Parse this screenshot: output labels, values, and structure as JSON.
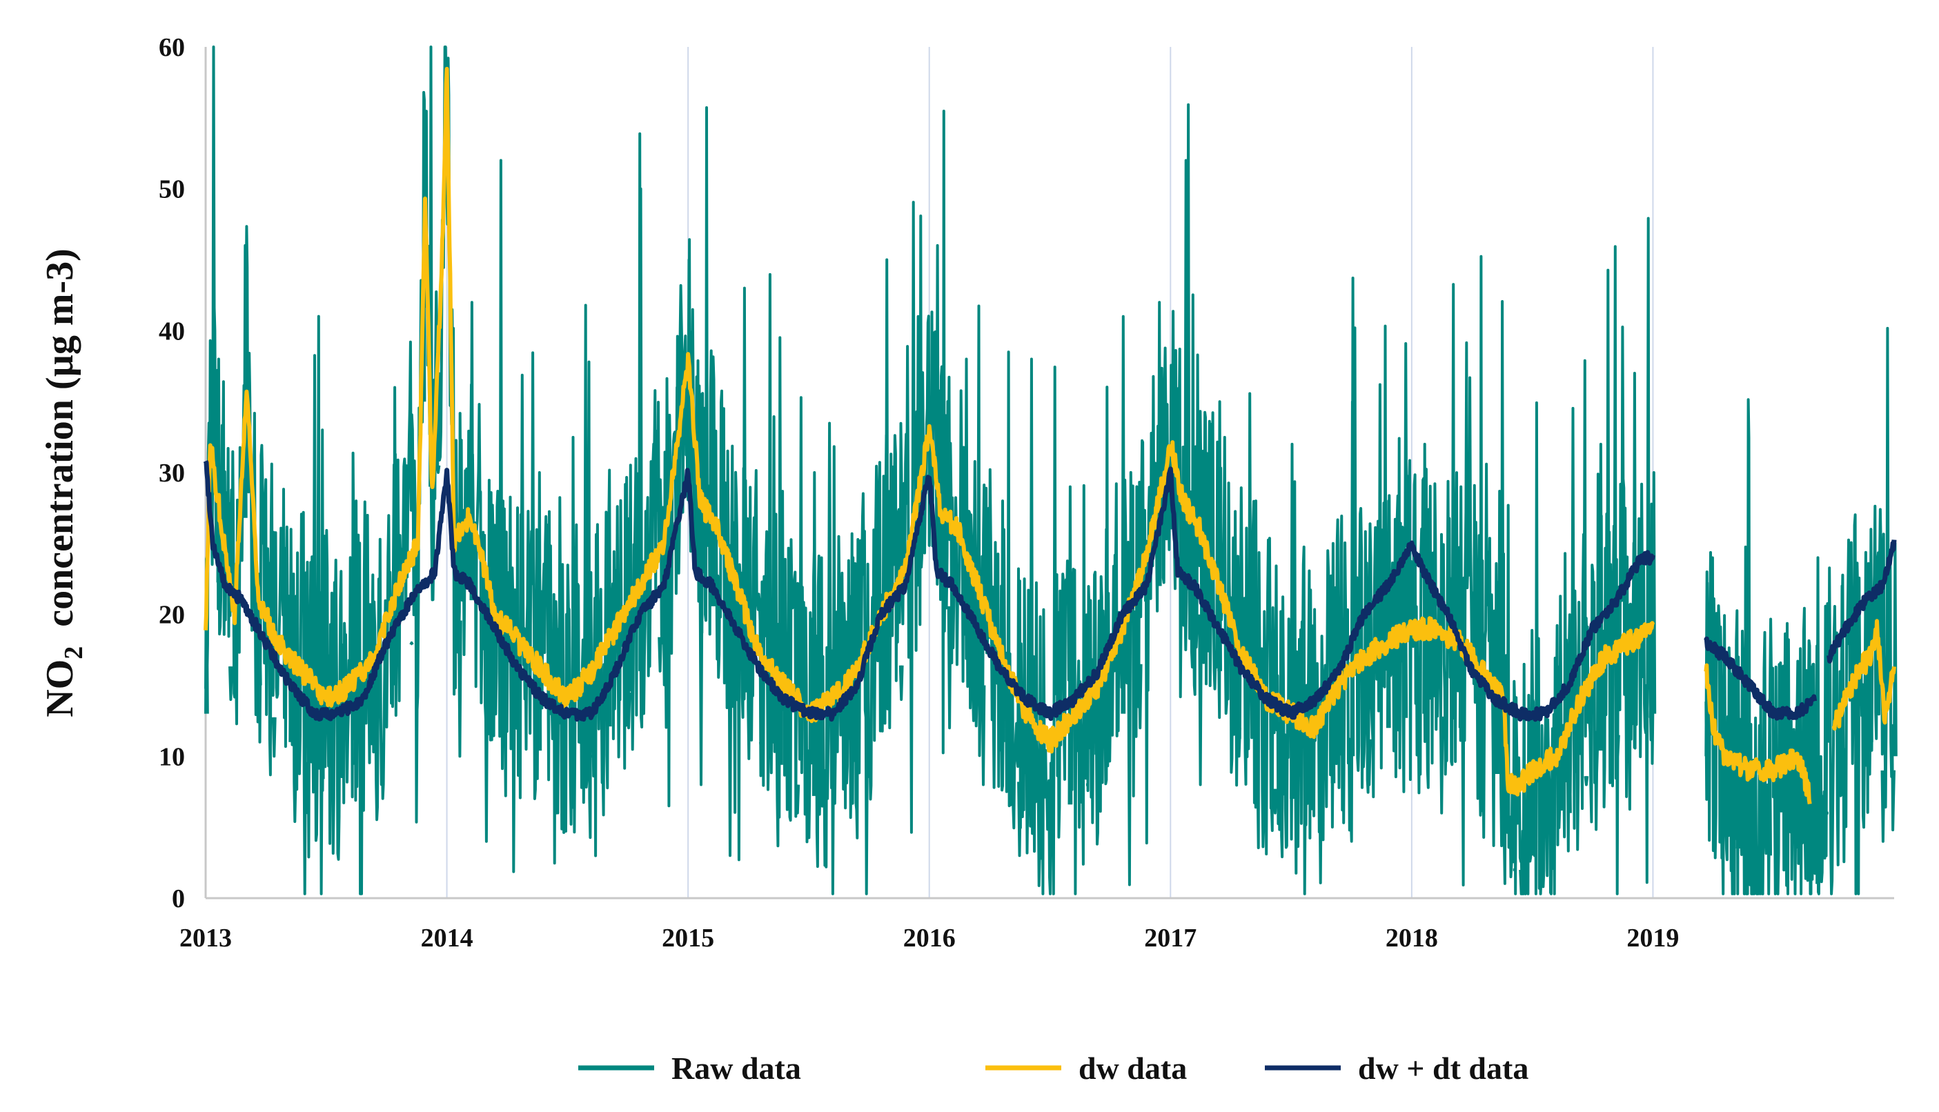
{
  "chart_data": {
    "type": "line",
    "title": "",
    "xlabel": "",
    "ylabel": {
      "prefix": "NO",
      "subscript": "2",
      "suffix": "  concentration (µg m-3)"
    },
    "ylim": [
      0,
      60
    ],
    "yticks": [
      "0",
      "10",
      "20",
      "30",
      "40",
      "50",
      "60"
    ],
    "xlim": [
      2013,
      2020
    ],
    "xticks": [
      "2013",
      "2014",
      "2015",
      "2016",
      "2017",
      "2018",
      "2019"
    ],
    "grid": "vertical year lines",
    "legend_position": "bottom-center",
    "data_gap": [
      2019.0,
      2019.22
    ],
    "series": [
      {
        "name": "Raw data",
        "color": "#00877f",
        "style": "noisy daily values",
        "min_value": 0.3,
        "max_value": 60,
        "points": [
          [
            2013.0,
            24
          ],
          [
            2013.05,
            38
          ],
          [
            2013.1,
            14
          ],
          [
            2013.16,
            46
          ],
          [
            2013.22,
            20
          ],
          [
            2013.28,
            10
          ],
          [
            2013.35,
            26
          ],
          [
            2013.42,
            6
          ],
          [
            2013.48,
            33
          ],
          [
            2013.55,
            9
          ],
          [
            2013.62,
            28
          ],
          [
            2013.7,
            12
          ],
          [
            2013.78,
            36
          ],
          [
            2013.85,
            18
          ],
          [
            2013.9,
            51
          ],
          [
            2013.93,
            62
          ],
          [
            2013.96,
            30
          ],
          [
            2014.0,
            58
          ],
          [
            2014.05,
            10
          ],
          [
            2014.1,
            42
          ],
          [
            2014.16,
            4
          ],
          [
            2014.22,
            52
          ],
          [
            2014.3,
            12
          ],
          [
            2014.38,
            30
          ],
          [
            2014.45,
            6
          ],
          [
            2014.52,
            28
          ],
          [
            2014.6,
            10
          ],
          [
            2014.67,
            26
          ],
          [
            2014.75,
            12
          ],
          [
            2014.8,
            50
          ],
          [
            2014.88,
            16
          ],
          [
            2014.95,
            36
          ],
          [
            2015.0,
            45
          ],
          [
            2015.05,
            8
          ],
          [
            2015.1,
            35
          ],
          [
            2015.17,
            3
          ],
          [
            2015.23,
            43
          ],
          [
            2015.3,
            10
          ],
          [
            2015.38,
            28
          ],
          [
            2015.45,
            6
          ],
          [
            2015.52,
            30
          ],
          [
            2015.6,
            12
          ],
          [
            2015.68,
            24
          ],
          [
            2015.75,
            10
          ],
          [
            2015.82,
            45
          ],
          [
            2015.88,
            14
          ],
          [
            2015.95,
            41
          ],
          [
            2016.03,
            46
          ],
          [
            2016.08,
            12
          ],
          [
            2016.15,
            38
          ],
          [
            2016.22,
            8
          ],
          [
            2016.3,
            28
          ],
          [
            2016.37,
            3
          ],
          [
            2016.42,
            38
          ],
          [
            2016.5,
            6
          ],
          [
            2016.58,
            29
          ],
          [
            2016.65,
            8
          ],
          [
            2016.73,
            26
          ],
          [
            2016.8,
            41
          ],
          [
            2016.87,
            12
          ],
          [
            2016.95,
            42
          ],
          [
            2017.0,
            30
          ],
          [
            2017.06,
            52
          ],
          [
            2017.12,
            8
          ],
          [
            2017.2,
            35
          ],
          [
            2017.28,
            10
          ],
          [
            2017.35,
            28
          ],
          [
            2017.43,
            6
          ],
          [
            2017.5,
            32
          ],
          [
            2017.58,
            12
          ],
          [
            2017.67,
            25
          ],
          [
            2017.75,
            35
          ],
          [
            2017.82,
            8
          ],
          [
            2017.9,
            28
          ],
          [
            2017.97,
            24
          ],
          [
            2018.05,
            32
          ],
          [
            2018.12,
            6
          ],
          [
            2018.2,
            29
          ],
          [
            2018.28,
            12
          ],
          [
            2018.35,
            22
          ],
          [
            2018.42,
            2
          ],
          [
            2018.45,
            0.3
          ],
          [
            2018.5,
            10
          ],
          [
            2018.58,
            5
          ],
          [
            2018.65,
            14
          ],
          [
            2018.72,
            8
          ],
          [
            2018.78,
            32
          ],
          [
            2018.85,
            10
          ],
          [
            2018.92,
            37
          ],
          [
            2018.97,
            15
          ],
          [
            2019.0,
            30
          ],
          null,
          [
            2019.22,
            23
          ],
          [
            2019.28,
            5
          ],
          [
            2019.35,
            17
          ],
          [
            2019.42,
            1
          ],
          [
            2019.48,
            14
          ],
          [
            2019.55,
            5
          ],
          [
            2019.6,
            13
          ],
          [
            2019.64,
            7
          ],
          [
            2019.68,
            24
          ],
          [
            2019.72,
            6
          ],
          [
            2019.78,
            22
          ],
          [
            2019.84,
            8
          ],
          [
            2019.9,
            26
          ],
          [
            2019.95,
            4
          ],
          [
            2020.0,
            25
          ]
        ]
      },
      {
        "name": "dw data",
        "color": "#fbbf0e",
        "points": [
          [
            2013.0,
            19
          ],
          [
            2013.02,
            32
          ],
          [
            2013.06,
            27
          ],
          [
            2013.12,
            20
          ],
          [
            2013.17,
            36
          ],
          [
            2013.22,
            21
          ],
          [
            2013.3,
            18
          ],
          [
            2013.4,
            16
          ],
          [
            2013.5,
            14
          ],
          [
            2013.6,
            15
          ],
          [
            2013.7,
            17
          ],
          [
            2013.8,
            22
          ],
          [
            2013.88,
            25
          ],
          [
            2013.91,
            49
          ],
          [
            2013.94,
            28
          ],
          [
            2013.98,
            45
          ],
          [
            2014.0,
            59
          ],
          [
            2014.03,
            25
          ],
          [
            2014.1,
            27
          ],
          [
            2014.2,
            20
          ],
          [
            2014.3,
            18
          ],
          [
            2014.4,
            16
          ],
          [
            2014.5,
            14
          ],
          [
            2014.6,
            16
          ],
          [
            2014.7,
            19
          ],
          [
            2014.8,
            22
          ],
          [
            2014.9,
            25
          ],
          [
            2015.0,
            38
          ],
          [
            2015.05,
            28
          ],
          [
            2015.12,
            26
          ],
          [
            2015.2,
            22
          ],
          [
            2015.3,
            17
          ],
          [
            2015.4,
            15
          ],
          [
            2015.5,
            13
          ],
          [
            2015.6,
            14
          ],
          [
            2015.7,
            16
          ],
          [
            2015.8,
            20
          ],
          [
            2015.9,
            23
          ],
          [
            2016.0,
            33
          ],
          [
            2016.05,
            27
          ],
          [
            2016.12,
            26
          ],
          [
            2016.2,
            22
          ],
          [
            2016.3,
            17
          ],
          [
            2016.4,
            13
          ],
          [
            2016.5,
            11
          ],
          [
            2016.6,
            13
          ],
          [
            2016.7,
            15
          ],
          [
            2016.8,
            19
          ],
          [
            2016.9,
            24
          ],
          [
            2017.0,
            32
          ],
          [
            2017.05,
            28
          ],
          [
            2017.12,
            26
          ],
          [
            2017.2,
            22
          ],
          [
            2017.3,
            17
          ],
          [
            2017.4,
            14
          ],
          [
            2017.5,
            13
          ],
          [
            2017.6,
            12
          ],
          [
            2017.7,
            15
          ],
          [
            2017.8,
            17
          ],
          [
            2017.9,
            18
          ],
          [
            2018.0,
            19
          ],
          [
            2018.1,
            19
          ],
          [
            2018.2,
            18
          ],
          [
            2018.3,
            16
          ],
          [
            2018.38,
            14
          ],
          [
            2018.4,
            8
          ],
          [
            2018.45,
            8
          ],
          [
            2018.5,
            9
          ],
          [
            2018.6,
            10
          ],
          [
            2018.7,
            14
          ],
          [
            2018.8,
            17
          ],
          [
            2018.9,
            18
          ],
          [
            2019.0,
            19
          ],
          null,
          [
            2019.22,
            16
          ],
          [
            2019.25,
            12
          ],
          [
            2019.3,
            10
          ],
          [
            2019.4,
            9
          ],
          [
            2019.5,
            9
          ],
          [
            2019.58,
            10
          ],
          [
            2019.62,
            9
          ],
          [
            2019.65,
            7
          ],
          null,
          [
            2019.75,
            12
          ],
          [
            2019.8,
            14
          ],
          [
            2019.85,
            16
          ],
          [
            2019.9,
            17
          ],
          [
            2019.93,
            19
          ],
          [
            2019.96,
            13
          ],
          [
            2020.0,
            16
          ]
        ]
      },
      {
        "name": "dw + dt data",
        "color": "#0e2d66",
        "points": [
          [
            2013.0,
            31
          ],
          [
            2013.03,
            25
          ],
          [
            2013.08,
            22
          ],
          [
            2013.15,
            21
          ],
          [
            2013.25,
            18
          ],
          [
            2013.35,
            15
          ],
          [
            2013.45,
            13
          ],
          [
            2013.55,
            13
          ],
          [
            2013.65,
            14
          ],
          [
            2013.75,
            18
          ],
          [
            2013.85,
            21
          ],
          [
            2013.95,
            23
          ],
          [
            2014.0,
            30
          ],
          [
            2014.03,
            23
          ],
          [
            2014.1,
            22
          ],
          [
            2014.2,
            19
          ],
          [
            2014.3,
            16
          ],
          [
            2014.4,
            14
          ],
          [
            2014.5,
            13
          ],
          [
            2014.6,
            13
          ],
          [
            2014.7,
            16
          ],
          [
            2014.8,
            20
          ],
          [
            2014.9,
            22
          ],
          [
            2015.0,
            30
          ],
          [
            2015.03,
            23
          ],
          [
            2015.1,
            22
          ],
          [
            2015.2,
            19
          ],
          [
            2015.3,
            16
          ],
          [
            2015.4,
            14
          ],
          [
            2015.5,
            13
          ],
          [
            2015.6,
            13
          ],
          [
            2015.7,
            15
          ],
          [
            2015.8,
            20
          ],
          [
            2015.9,
            22
          ],
          [
            2016.0,
            30
          ],
          [
            2016.03,
            23
          ],
          [
            2016.1,
            22
          ],
          [
            2016.2,
            19
          ],
          [
            2016.3,
            16
          ],
          [
            2016.4,
            14
          ],
          [
            2016.5,
            13
          ],
          [
            2016.6,
            14
          ],
          [
            2016.7,
            16
          ],
          [
            2016.8,
            20
          ],
          [
            2016.9,
            22
          ],
          [
            2017.0,
            30
          ],
          [
            2017.03,
            23
          ],
          [
            2017.1,
            22
          ],
          [
            2017.2,
            19
          ],
          [
            2017.3,
            16
          ],
          [
            2017.4,
            14
          ],
          [
            2017.5,
            13
          ],
          [
            2017.6,
            14
          ],
          [
            2017.7,
            16
          ],
          [
            2017.8,
            20
          ],
          [
            2017.9,
            22
          ],
          [
            2018.0,
            25
          ],
          [
            2018.05,
            23
          ],
          [
            2018.15,
            20
          ],
          [
            2018.25,
            16
          ],
          [
            2018.35,
            14
          ],
          [
            2018.45,
            13
          ],
          [
            2018.55,
            13
          ],
          [
            2018.65,
            15
          ],
          [
            2018.75,
            19
          ],
          [
            2018.85,
            21
          ],
          [
            2018.95,
            24
          ],
          [
            2019.0,
            24
          ],
          null,
          [
            2019.22,
            18
          ],
          [
            2019.3,
            17
          ],
          [
            2019.4,
            15
          ],
          [
            2019.5,
            13
          ],
          [
            2019.6,
            13
          ],
          [
            2019.67,
            14
          ],
          null,
          [
            2019.73,
            17
          ],
          [
            2019.8,
            19
          ],
          [
            2019.88,
            21
          ],
          [
            2019.95,
            22
          ],
          [
            2020.0,
            25
          ]
        ]
      }
    ]
  }
}
